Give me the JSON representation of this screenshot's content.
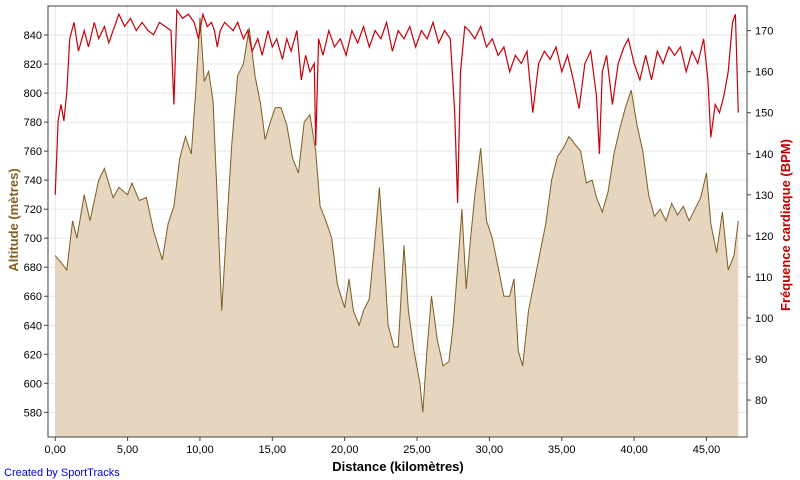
{
  "credit": "Created by SportTracks",
  "colors": {
    "altitude_fill": "#e6d6bf",
    "altitude_line": "#7d5d21",
    "heart_rate_line": "#c8000a",
    "grid": "#e6e6e6",
    "frame": "#404040"
  },
  "chart_data": {
    "type": "area",
    "xlabel": "Distance (kilomètres)",
    "ylabel_left": "Altitude (mètres)",
    "ylabel_right": "Fréquence cardiaque (BPM)",
    "xlim": [
      -0.5,
      47.8
    ],
    "ylim_left": [
      563,
      860
    ],
    "ylim_right": [
      71,
      176
    ],
    "x_ticks": [
      0,
      5,
      10,
      15,
      20,
      25,
      30,
      35,
      40,
      45
    ],
    "x_tick_labels": [
      "0,00",
      "5,00",
      "10,00",
      "15,00",
      "20,00",
      "25,00",
      "30,00",
      "35,00",
      "40,00",
      "45,00"
    ],
    "y_left_ticks": [
      580,
      600,
      620,
      640,
      660,
      680,
      700,
      720,
      740,
      760,
      780,
      800,
      820,
      840
    ],
    "y_right_ticks": [
      80,
      90,
      100,
      110,
      120,
      130,
      140,
      150,
      160,
      170
    ],
    "grid": true,
    "series": [
      {
        "name": "Altitude (mètres)",
        "axis": "left",
        "type": "area",
        "points": [
          [
            0,
            688
          ],
          [
            0.5,
            682
          ],
          [
            0.8,
            678
          ],
          [
            1.2,
            712
          ],
          [
            1.5,
            700
          ],
          [
            2,
            730
          ],
          [
            2.4,
            712
          ],
          [
            3,
            740
          ],
          [
            3.4,
            748
          ],
          [
            4,
            728
          ],
          [
            4.4,
            735
          ],
          [
            5,
            730
          ],
          [
            5.3,
            738
          ],
          [
            5.8,
            726
          ],
          [
            6.3,
            728
          ],
          [
            6.8,
            705
          ],
          [
            7.4,
            685
          ],
          [
            7.8,
            710
          ],
          [
            8.2,
            722
          ],
          [
            8.6,
            755
          ],
          [
            9.0,
            770
          ],
          [
            9.4,
            758
          ],
          [
            9.7,
            800
          ],
          [
            10.0,
            852
          ],
          [
            10.3,
            808
          ],
          [
            10.6,
            815
          ],
          [
            10.9,
            795
          ],
          [
            11.2,
            726
          ],
          [
            11.5,
            650
          ],
          [
            11.8,
            700
          ],
          [
            12.2,
            765
          ],
          [
            12.6,
            812
          ],
          [
            13.0,
            820
          ],
          [
            13.4,
            845
          ],
          [
            13.8,
            812
          ],
          [
            14.2,
            792
          ],
          [
            14.5,
            768
          ],
          [
            14.8,
            778
          ],
          [
            15.2,
            790
          ],
          [
            15.6,
            790
          ],
          [
            16.0,
            778
          ],
          [
            16.4,
            755
          ],
          [
            16.8,
            745
          ],
          [
            17.2,
            780
          ],
          [
            17.6,
            785
          ],
          [
            18.0,
            760
          ],
          [
            18.3,
            722
          ],
          [
            18.7,
            712
          ],
          [
            19.1,
            700
          ],
          [
            19.5,
            668
          ],
          [
            20.0,
            652
          ],
          [
            20.3,
            672
          ],
          [
            20.6,
            650
          ],
          [
            21.0,
            640
          ],
          [
            21.3,
            650
          ],
          [
            21.7,
            658
          ],
          [
            22.1,
            700
          ],
          [
            22.4,
            735
          ],
          [
            22.7,
            690
          ],
          [
            23.0,
            640
          ],
          [
            23.4,
            625
          ],
          [
            23.7,
            625
          ],
          [
            24.1,
            695
          ],
          [
            24.4,
            650
          ],
          [
            24.8,
            622
          ],
          [
            25.2,
            600
          ],
          [
            25.4,
            580
          ],
          [
            25.7,
            625
          ],
          [
            26.0,
            660
          ],
          [
            26.4,
            630
          ],
          [
            26.8,
            612
          ],
          [
            27.2,
            615
          ],
          [
            27.5,
            640
          ],
          [
            27.8,
            680
          ],
          [
            28.1,
            720
          ],
          [
            28.4,
            665
          ],
          [
            28.7,
            700
          ],
          [
            29.0,
            730
          ],
          [
            29.4,
            762
          ],
          [
            29.8,
            712
          ],
          [
            30.2,
            700
          ],
          [
            30.6,
            680
          ],
          [
            31.0,
            660
          ],
          [
            31.4,
            660
          ],
          [
            31.7,
            672
          ],
          [
            32.0,
            622
          ],
          [
            32.3,
            612
          ],
          [
            32.7,
            650
          ],
          [
            33.1,
            670
          ],
          [
            33.5,
            690
          ],
          [
            33.9,
            710
          ],
          [
            34.3,
            740
          ],
          [
            34.7,
            756
          ],
          [
            35.1,
            762
          ],
          [
            35.5,
            770
          ],
          [
            35.9,
            765
          ],
          [
            36.3,
            760
          ],
          [
            36.7,
            738
          ],
          [
            37.1,
            740
          ],
          [
            37.4,
            728
          ],
          [
            37.8,
            718
          ],
          [
            38.2,
            732
          ],
          [
            38.6,
            758
          ],
          [
            39.0,
            775
          ],
          [
            39.4,
            790
          ],
          [
            39.8,
            802
          ],
          [
            40.2,
            778
          ],
          [
            40.6,
            760
          ],
          [
            41.0,
            730
          ],
          [
            41.4,
            715
          ],
          [
            41.8,
            720
          ],
          [
            42.2,
            712
          ],
          [
            42.6,
            724
          ],
          [
            43.0,
            716
          ],
          [
            43.4,
            722
          ],
          [
            43.8,
            712
          ],
          [
            44.2,
            720
          ],
          [
            44.6,
            728
          ],
          [
            45.0,
            745
          ],
          [
            45.3,
            710
          ],
          [
            45.7,
            690
          ],
          [
            46.1,
            718
          ],
          [
            46.5,
            678
          ],
          [
            46.9,
            688
          ],
          [
            47.2,
            712
          ]
        ]
      },
      {
        "name": "Fréquence cardiaque (BPM)",
        "axis": "right",
        "type": "line",
        "points": [
          [
            0,
            130
          ],
          [
            0.2,
            148
          ],
          [
            0.4,
            152
          ],
          [
            0.6,
            148
          ],
          [
            0.8,
            155
          ],
          [
            1.0,
            168
          ],
          [
            1.3,
            172
          ],
          [
            1.6,
            165
          ],
          [
            2.0,
            170
          ],
          [
            2.3,
            166
          ],
          [
            2.7,
            172
          ],
          [
            3.0,
            168
          ],
          [
            3.4,
            171
          ],
          [
            3.7,
            167
          ],
          [
            4.0,
            170
          ],
          [
            4.4,
            174
          ],
          [
            4.8,
            171
          ],
          [
            5.2,
            173
          ],
          [
            5.6,
            170
          ],
          [
            6.0,
            172
          ],
          [
            6.4,
            170
          ],
          [
            6.8,
            169
          ],
          [
            7.2,
            172
          ],
          [
            7.6,
            171
          ],
          [
            8.0,
            170
          ],
          [
            8.2,
            152
          ],
          [
            8.4,
            175
          ],
          [
            8.8,
            173
          ],
          [
            9.2,
            174
          ],
          [
            9.6,
            172
          ],
          [
            9.9,
            168
          ],
          [
            10.2,
            174
          ],
          [
            10.5,
            171
          ],
          [
            10.8,
            172
          ],
          [
            11.0,
            170
          ],
          [
            11.2,
            166
          ],
          [
            11.4,
            170
          ],
          [
            11.7,
            172
          ],
          [
            12.0,
            171
          ],
          [
            12.3,
            170
          ],
          [
            12.6,
            172
          ],
          [
            13.0,
            168
          ],
          [
            13.3,
            170
          ],
          [
            13.6,
            165
          ],
          [
            14.0,
            168
          ],
          [
            14.3,
            164
          ],
          [
            14.7,
            170
          ],
          [
            15.0,
            166
          ],
          [
            15.3,
            168
          ],
          [
            15.7,
            163
          ],
          [
            16.0,
            168
          ],
          [
            16.3,
            165
          ],
          [
            16.7,
            170
          ],
          [
            17.0,
            158
          ],
          [
            17.3,
            164
          ],
          [
            17.6,
            160
          ],
          [
            17.9,
            162
          ],
          [
            18.0,
            142
          ],
          [
            18.2,
            168
          ],
          [
            18.5,
            164
          ],
          [
            18.9,
            170
          ],
          [
            19.3,
            166
          ],
          [
            19.7,
            168
          ],
          [
            20.1,
            164
          ],
          [
            20.5,
            170
          ],
          [
            20.9,
            167
          ],
          [
            21.3,
            171
          ],
          [
            21.7,
            166
          ],
          [
            22.1,
            170
          ],
          [
            22.5,
            168
          ],
          [
            22.9,
            172
          ],
          [
            23.3,
            165
          ],
          [
            23.7,
            170
          ],
          [
            24.1,
            168
          ],
          [
            24.5,
            171
          ],
          [
            24.9,
            166
          ],
          [
            25.3,
            170
          ],
          [
            25.7,
            168
          ],
          [
            26.1,
            172
          ],
          [
            26.5,
            167
          ],
          [
            26.9,
            170
          ],
          [
            27.3,
            168
          ],
          [
            27.6,
            150
          ],
          [
            27.8,
            128
          ],
          [
            28.0,
            160
          ],
          [
            28.3,
            171
          ],
          [
            28.6,
            170
          ],
          [
            29.0,
            168
          ],
          [
            29.4,
            171
          ],
          [
            29.8,
            166
          ],
          [
            30.2,
            168
          ],
          [
            30.6,
            164
          ],
          [
            31.0,
            166
          ],
          [
            31.4,
            160
          ],
          [
            31.8,
            164
          ],
          [
            32.2,
            162
          ],
          [
            32.6,
            165
          ],
          [
            33.0,
            150
          ],
          [
            33.4,
            162
          ],
          [
            33.8,
            165
          ],
          [
            34.2,
            163
          ],
          [
            34.6,
            166
          ],
          [
            35.0,
            160
          ],
          [
            35.4,
            164
          ],
          [
            35.8,
            158
          ],
          [
            36.2,
            151
          ],
          [
            36.6,
            162
          ],
          [
            37.0,
            165
          ],
          [
            37.4,
            154
          ],
          [
            37.6,
            140
          ],
          [
            37.8,
            160
          ],
          [
            38.1,
            164
          ],
          [
            38.5,
            152
          ],
          [
            38.9,
            162
          ],
          [
            39.3,
            166
          ],
          [
            39.6,
            168
          ],
          [
            40.0,
            162
          ],
          [
            40.4,
            158
          ],
          [
            40.8,
            164
          ],
          [
            41.2,
            158
          ],
          [
            41.6,
            165
          ],
          [
            42.0,
            162
          ],
          [
            42.4,
            166
          ],
          [
            42.8,
            164
          ],
          [
            43.2,
            166
          ],
          [
            43.6,
            160
          ],
          [
            44.0,
            165
          ],
          [
            44.4,
            162
          ],
          [
            44.8,
            168
          ],
          [
            45.1,
            158
          ],
          [
            45.3,
            144
          ],
          [
            45.6,
            152
          ],
          [
            45.9,
            150
          ],
          [
            46.2,
            154
          ],
          [
            46.5,
            160
          ],
          [
            46.8,
            172
          ],
          [
            47.0,
            174
          ],
          [
            47.2,
            150
          ]
        ]
      }
    ]
  }
}
